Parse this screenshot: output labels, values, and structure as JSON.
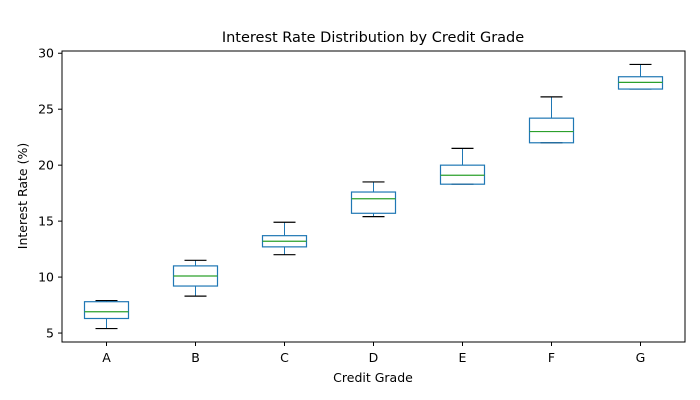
{
  "chart_data": {
    "type": "boxplot",
    "title": "Interest Rate Distribution by Credit Grade",
    "xlabel": "Credit Grade",
    "ylabel": "Interest Rate (%)",
    "ylim": [
      4.2,
      30.2
    ],
    "yticks": [
      5,
      10,
      15,
      20,
      25,
      30
    ],
    "categories": [
      "A",
      "B",
      "C",
      "D",
      "E",
      "F",
      "G"
    ],
    "boxes": [
      {
        "category": "A",
        "whisker_low": 5.4,
        "q1": 6.3,
        "median": 6.9,
        "q3": 7.8,
        "whisker_high": 7.9
      },
      {
        "category": "B",
        "whisker_low": 8.3,
        "q1": 9.2,
        "median": 10.1,
        "q3": 11.0,
        "whisker_high": 11.5
      },
      {
        "category": "C",
        "whisker_low": 12.0,
        "q1": 12.7,
        "median": 13.2,
        "q3": 13.7,
        "whisker_high": 14.9
      },
      {
        "category": "D",
        "whisker_low": 15.4,
        "q1": 15.7,
        "median": 17.0,
        "q3": 17.6,
        "whisker_high": 18.5
      },
      {
        "category": "E",
        "whisker_low": 18.3,
        "q1": 18.3,
        "median": 19.1,
        "q3": 20.0,
        "whisker_high": 21.5
      },
      {
        "category": "F",
        "whisker_low": 22.0,
        "q1": 22.0,
        "median": 23.0,
        "q3": 24.2,
        "whisker_high": 26.1
      },
      {
        "category": "G",
        "whisker_low": 26.8,
        "q1": 26.8,
        "median": 27.4,
        "q3": 27.9,
        "whisker_high": 29.0
      }
    ],
    "colors": {
      "box": "#1f77b4",
      "median": "#2ca02c",
      "whisker_cap": "#000000",
      "axes": "#000000"
    },
    "grid": false,
    "legend": "none"
  }
}
